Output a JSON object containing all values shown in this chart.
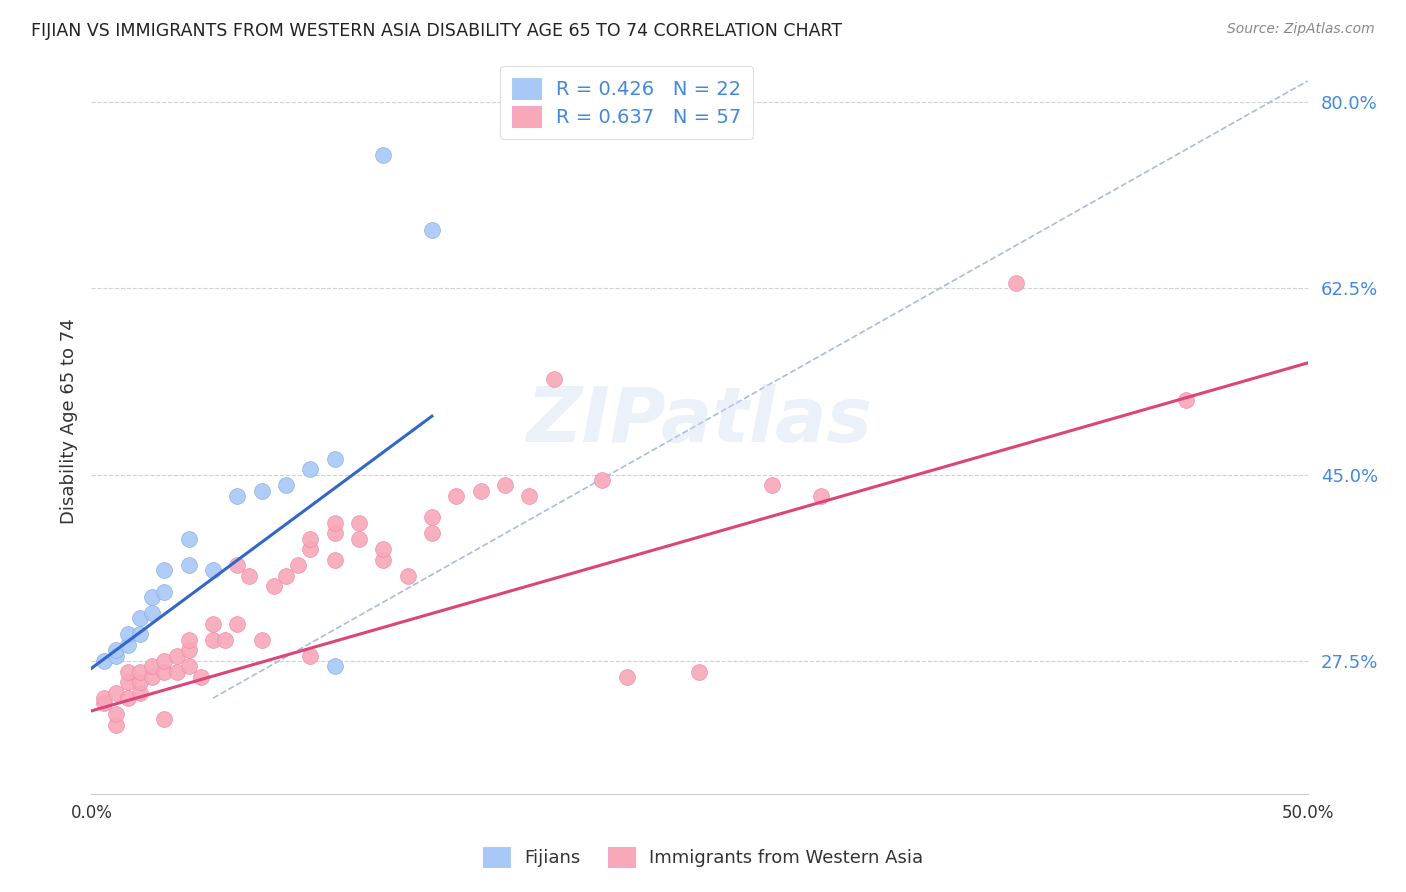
{
  "title": "FIJIAN VS IMMIGRANTS FROM WESTERN ASIA DISABILITY AGE 65 TO 74 CORRELATION CHART",
  "source": "Source: ZipAtlas.com",
  "ylabel": "Disability Age 65 to 74",
  "x_min": 0.0,
  "x_max": 0.5,
  "y_min": 0.15,
  "y_max": 0.85,
  "x_ticks": [
    0.0,
    0.1,
    0.2,
    0.3,
    0.4,
    0.5
  ],
  "x_tick_labels": [
    "0.0%",
    "",
    "",
    "",
    "",
    "50.0%"
  ],
  "y_ticks": [
    0.275,
    0.45,
    0.625,
    0.8
  ],
  "y_tick_labels": [
    "27.5%",
    "45.0%",
    "62.5%",
    "80.0%"
  ],
  "watermark": "ZIPatlas",
  "fijians_R": 0.426,
  "fijians_N": 22,
  "western_asia_R": 0.637,
  "western_asia_N": 57,
  "fijians_color": "#a8c8f8",
  "western_asia_color": "#f8a8b8",
  "fijians_line_color": "#3366cc",
  "western_asia_line_color": "#dd4477",
  "diagonal_color": "#aabbdd",
  "fijians_x": [
    0.005,
    0.01,
    0.01,
    0.015,
    0.015,
    0.02,
    0.02,
    0.025,
    0.025,
    0.03,
    0.03,
    0.04,
    0.04,
    0.05,
    0.06,
    0.07,
    0.08,
    0.09,
    0.1,
    0.1,
    0.12,
    0.14
  ],
  "fijians_y": [
    0.275,
    0.28,
    0.285,
    0.29,
    0.3,
    0.3,
    0.315,
    0.32,
    0.335,
    0.34,
    0.36,
    0.365,
    0.39,
    0.36,
    0.43,
    0.435,
    0.44,
    0.455,
    0.27,
    0.465,
    0.75,
    0.68
  ],
  "western_asia_x": [
    0.005,
    0.005,
    0.01,
    0.01,
    0.01,
    0.015,
    0.015,
    0.015,
    0.02,
    0.02,
    0.02,
    0.025,
    0.025,
    0.03,
    0.03,
    0.03,
    0.035,
    0.035,
    0.04,
    0.04,
    0.04,
    0.045,
    0.05,
    0.05,
    0.055,
    0.06,
    0.06,
    0.065,
    0.07,
    0.075,
    0.08,
    0.085,
    0.09,
    0.09,
    0.09,
    0.1,
    0.1,
    0.1,
    0.11,
    0.11,
    0.12,
    0.12,
    0.13,
    0.14,
    0.14,
    0.15,
    0.16,
    0.17,
    0.18,
    0.19,
    0.21,
    0.22,
    0.25,
    0.28,
    0.3,
    0.38,
    0.45
  ],
  "western_asia_y": [
    0.235,
    0.24,
    0.215,
    0.225,
    0.245,
    0.24,
    0.255,
    0.265,
    0.245,
    0.255,
    0.265,
    0.26,
    0.27,
    0.22,
    0.265,
    0.275,
    0.265,
    0.28,
    0.27,
    0.285,
    0.295,
    0.26,
    0.295,
    0.31,
    0.295,
    0.31,
    0.365,
    0.355,
    0.295,
    0.345,
    0.355,
    0.365,
    0.38,
    0.39,
    0.28,
    0.37,
    0.395,
    0.405,
    0.39,
    0.405,
    0.37,
    0.38,
    0.355,
    0.395,
    0.41,
    0.43,
    0.435,
    0.44,
    0.43,
    0.54,
    0.445,
    0.26,
    0.265,
    0.44,
    0.43,
    0.63,
    0.52
  ],
  "background_color": "#ffffff",
  "grid_color": "#cccccc",
  "fij_line_x0": 0.0,
  "fij_line_y0": 0.268,
  "fij_line_x1": 0.14,
  "fij_line_y1": 0.505,
  "wa_line_x0": 0.0,
  "wa_line_y0": 0.228,
  "wa_line_x1": 0.5,
  "wa_line_y1": 0.555
}
